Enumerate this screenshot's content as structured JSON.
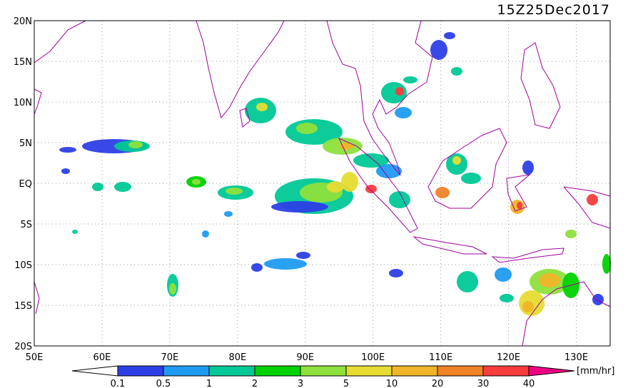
{
  "title": "15Z25Dec2017",
  "lat_labels": [
    "20N",
    "15N",
    "10N",
    "5N",
    "EQ",
    "5S",
    "10S",
    "15S",
    "20S"
  ],
  "lon_labels": [
    "50E",
    "60E",
    "70E",
    "80E",
    "90E",
    "100E",
    "110E",
    "120E",
    "130E"
  ],
  "legend": {
    "levels": [
      0.1,
      0.5,
      1,
      2,
      3,
      5,
      10,
      20,
      30,
      40
    ],
    "colors": [
      "#ffffff",
      "#2d3fe6",
      "#1e9bf0",
      "#00c896",
      "#00d200",
      "#8ee03c",
      "#e6dc32",
      "#f0b428",
      "#f08228",
      "#fa3c3c",
      "#f00082"
    ],
    "unit": "[mm/hr]"
  }
}
